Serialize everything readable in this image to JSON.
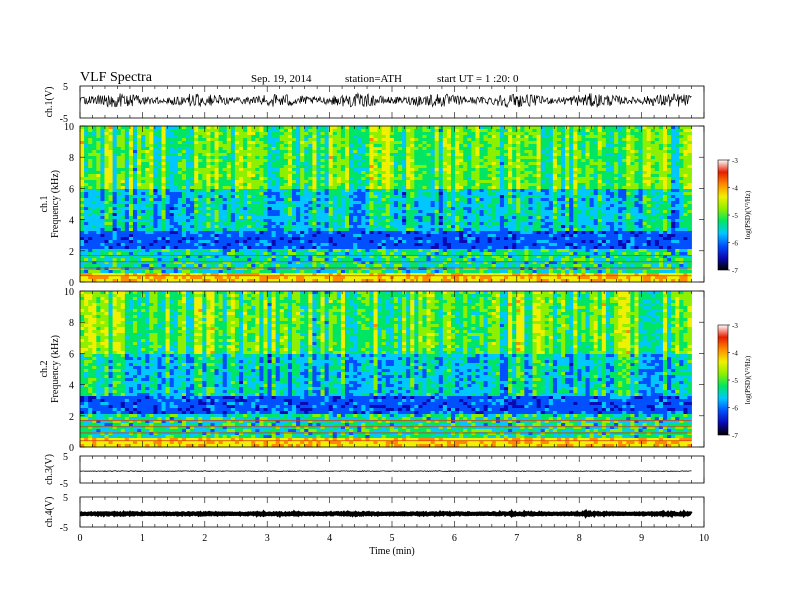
{
  "header": {
    "title": "VLF  Spectra",
    "date": "Sep. 19, 2014",
    "station": "station=ATH",
    "start": "start  UT  =   1  :20: 0"
  },
  "colors": {
    "colormap": [
      "#000000",
      "#0a0ab4",
      "#0050ff",
      "#00c8ff",
      "#00e664",
      "#8cf000",
      "#f0f000",
      "#ff8c00",
      "#e61e00",
      "#ffffff"
    ]
  },
  "chart_data": [
    {
      "type": "line",
      "name": "ch.1 waveform",
      "ylabel": "ch.1(V)",
      "yticks": [
        "5",
        "-5"
      ],
      "ylim": [
        -5,
        5
      ],
      "xlim": [
        0,
        10
      ],
      "data_end_min": 9.8,
      "baseline": 0.5,
      "noise_amplitude": 2.2
    },
    {
      "type": "heatmap",
      "name": "ch.1 spectrogram",
      "ylabel_top": "ch.1",
      "ylabel": "Frequency  (kHz)",
      "yticks": [
        "0",
        "2",
        "4",
        "6",
        "8",
        "10"
      ],
      "ylim": [
        0,
        10
      ],
      "xlim": [
        0,
        10
      ],
      "data_end_min": 9.8,
      "colorbar": {
        "label": "log(PSD)(V²/Hz)",
        "ticks": [
          "-3",
          "-4",
          "-5",
          "-6",
          "-7"
        ],
        "range": [
          -7,
          -3
        ]
      }
    },
    {
      "type": "heatmap",
      "name": "ch.2 spectrogram",
      "ylabel_top": "ch.2",
      "ylabel": "Frequency  (kHz)",
      "yticks": [
        "0",
        "2",
        "4",
        "6",
        "8",
        "10"
      ],
      "ylim": [
        0,
        10
      ],
      "xlim": [
        0,
        10
      ],
      "data_end_min": 9.8,
      "colorbar": {
        "label": "log(PSD)(V²/Hz)",
        "ticks": [
          "-3",
          "-4",
          "-5",
          "-6",
          "-7"
        ],
        "range": [
          -7,
          -3
        ]
      }
    },
    {
      "type": "line",
      "name": "ch.3 waveform",
      "ylabel": "ch.3(V)",
      "yticks": [
        "5",
        "-5"
      ],
      "ylim": [
        -5,
        5
      ],
      "xlim": [
        0,
        10
      ],
      "data_end_min": 9.8,
      "baseline": -0.6,
      "noise_amplitude": 0.15
    },
    {
      "type": "line",
      "name": "ch.4 waveform",
      "ylabel": "ch.4(V)",
      "yticks": [
        "5",
        "-5"
      ],
      "ylim": [
        -5,
        5
      ],
      "xlim": [
        0,
        10
      ],
      "data_end_min": 9.8,
      "baseline": -0.6,
      "noise_amplitude": 0.25
    }
  ],
  "xaxis": {
    "label": "Time  (min)",
    "ticks": [
      "0",
      "1",
      "2",
      "3",
      "4",
      "5",
      "6",
      "7",
      "8",
      "9",
      "10"
    ]
  }
}
